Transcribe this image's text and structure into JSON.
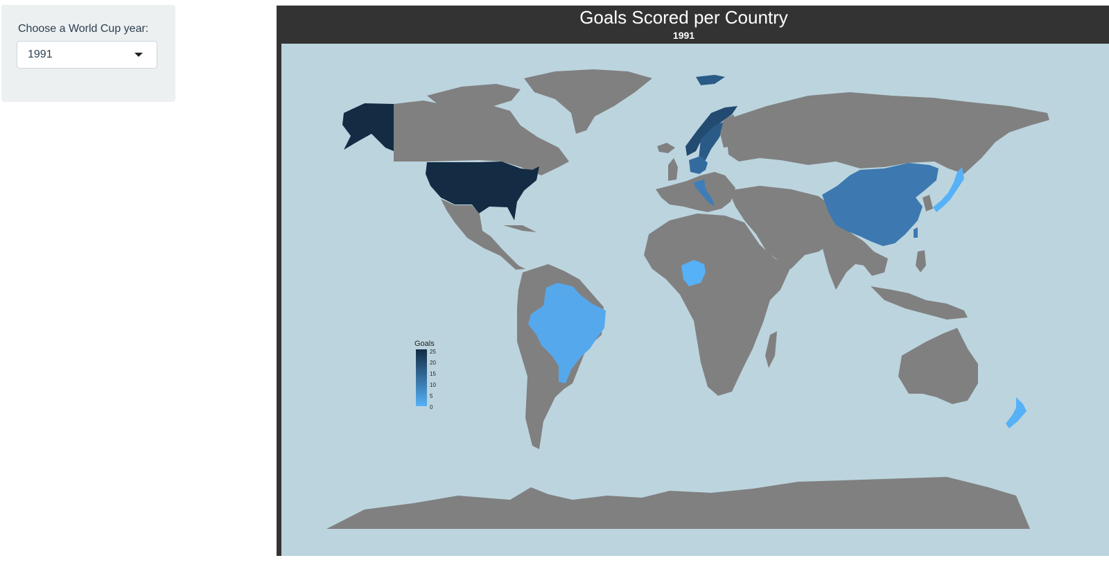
{
  "sidebar": {
    "label": "Choose a World Cup year:",
    "selected_year": "1991",
    "dropdown_icon": "caret-down-icon"
  },
  "map": {
    "title": "Goals Scored per Country",
    "subtitle": "1991",
    "colors": {
      "frame": "#333333",
      "ocean": "#bcd4de",
      "no_data": "#808080",
      "scale_low": "#56b1f7",
      "scale_high": "#132b43"
    },
    "legend": {
      "title": "Goals",
      "ticks": [
        "25",
        "20",
        "15",
        "10",
        "5",
        "0"
      ],
      "range": [
        0,
        25
      ]
    },
    "highlighted_countries": [
      {
        "name": "United States",
        "level": "very high"
      },
      {
        "name": "Norway",
        "level": "high"
      },
      {
        "name": "Sweden",
        "level": "high"
      },
      {
        "name": "Germany",
        "level": "medium"
      },
      {
        "name": "Denmark",
        "level": "medium"
      },
      {
        "name": "Italy",
        "level": "medium"
      },
      {
        "name": "China",
        "level": "medium"
      },
      {
        "name": "Taiwan",
        "level": "medium"
      },
      {
        "name": "Brazil",
        "level": "low"
      },
      {
        "name": "Nigeria",
        "level": "low"
      },
      {
        "name": "Japan",
        "level": "low"
      },
      {
        "name": "New Zealand",
        "level": "low"
      }
    ]
  }
}
